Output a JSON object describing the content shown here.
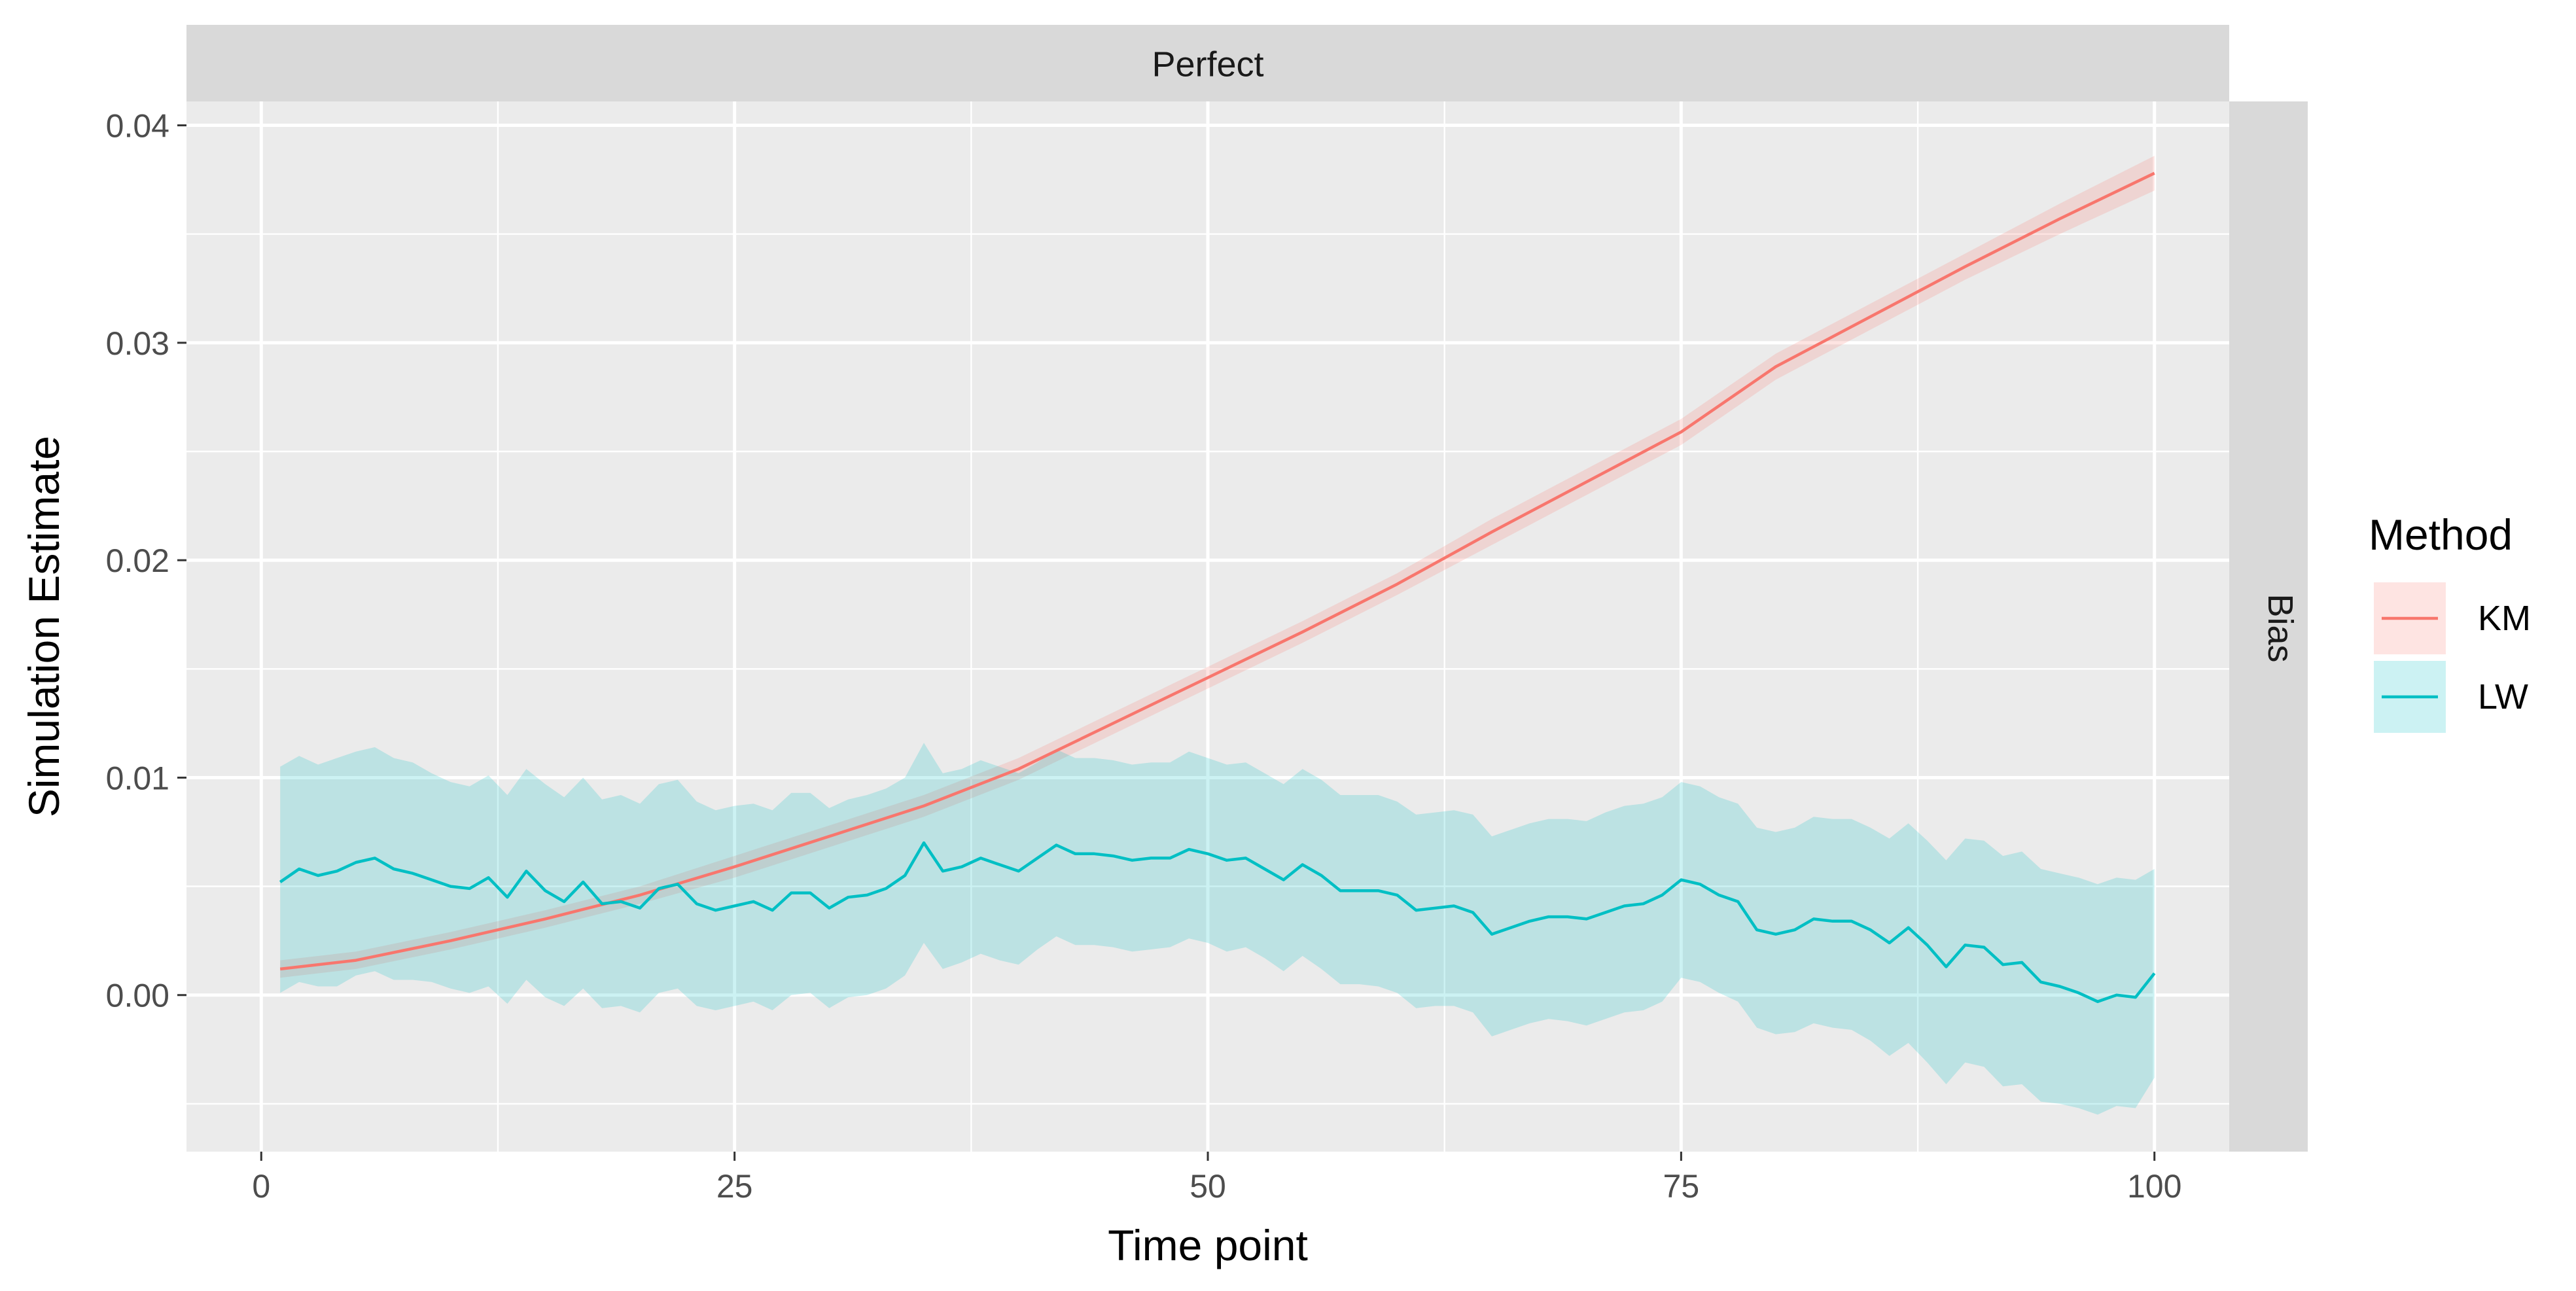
{
  "chart_data": {
    "type": "line",
    "title": "",
    "facet_top": "Perfect",
    "facet_right": "Bias",
    "xlabel": "Time point",
    "ylabel": "Simulation Estimate",
    "xlim": [
      -3.95,
      103.95
    ],
    "ylim": [
      -0.0072,
      0.0411
    ],
    "x_ticks": [
      0,
      25,
      50,
      75,
      100
    ],
    "x_tick_labels": [
      "0",
      "25",
      "50",
      "75",
      "100"
    ],
    "y_ticks": [
      0.0,
      0.01,
      0.02,
      0.03,
      0.04
    ],
    "y_tick_labels": [
      "0.00",
      "0.01",
      "0.02",
      "0.03",
      "0.04"
    ],
    "grid": true,
    "legend": {
      "title": "Method",
      "position": "right",
      "entries": [
        "KM",
        "LW"
      ]
    },
    "colors": {
      "KM": "#F8766D",
      "LW": "#00BFC4",
      "panel": "#EBEBEB",
      "strip": "#D9D9D9",
      "grid": "#FFFFFF"
    },
    "series": [
      {
        "name": "KM",
        "x": [
          1,
          5,
          10,
          15,
          20,
          25,
          30,
          35,
          40,
          45,
          50,
          55,
          60,
          65,
          70,
          75,
          80,
          85,
          90,
          95,
          100
        ],
        "y": [
          0.0012,
          0.0016,
          0.0025,
          0.0035,
          0.0046,
          0.0059,
          0.0073,
          0.0087,
          0.0104,
          0.0125,
          0.0146,
          0.0167,
          0.0189,
          0.0213,
          0.0236,
          0.0259,
          0.0289,
          0.0312,
          0.0335,
          0.0357,
          0.0378
        ],
        "lower": [
          0.0008,
          0.0012,
          0.0021,
          0.0031,
          0.0042,
          0.0054,
          0.0068,
          0.0082,
          0.0099,
          0.012,
          0.0141,
          0.0162,
          0.0184,
          0.0207,
          0.023,
          0.0253,
          0.0283,
          0.0306,
          0.0329,
          0.035,
          0.037
        ],
        "upper": [
          0.0016,
          0.002,
          0.0029,
          0.0039,
          0.005,
          0.0064,
          0.0078,
          0.0092,
          0.0109,
          0.013,
          0.0151,
          0.0172,
          0.0194,
          0.0219,
          0.0242,
          0.0265,
          0.0295,
          0.0318,
          0.0341,
          0.0364,
          0.0386
        ]
      },
      {
        "name": "LW",
        "x": [
          1,
          2,
          3,
          4,
          5,
          6,
          7,
          8,
          9,
          10,
          11,
          12,
          13,
          14,
          15,
          16,
          17,
          18,
          19,
          20,
          21,
          22,
          23,
          24,
          25,
          26,
          27,
          28,
          29,
          30,
          31,
          32,
          33,
          34,
          35,
          36,
          37,
          38,
          39,
          40,
          41,
          42,
          43,
          44,
          45,
          46,
          47,
          48,
          49,
          50,
          51,
          52,
          53,
          54,
          55,
          56,
          57,
          58,
          59,
          60,
          61,
          62,
          63,
          64,
          65,
          66,
          67,
          68,
          69,
          70,
          71,
          72,
          73,
          74,
          75,
          76,
          77,
          78,
          79,
          80,
          81,
          82,
          83,
          84,
          85,
          86,
          87,
          88,
          89,
          90,
          91,
          92,
          93,
          94,
          95,
          96,
          97,
          98,
          99,
          100
        ],
        "y": [
          0.0052,
          0.0058,
          0.0055,
          0.0057,
          0.0061,
          0.0063,
          0.0058,
          0.0056,
          0.0053,
          0.005,
          0.0049,
          0.0054,
          0.0045,
          0.0057,
          0.0048,
          0.0043,
          0.0052,
          0.0042,
          0.0043,
          0.004,
          0.0049,
          0.0051,
          0.0042,
          0.0039,
          0.0041,
          0.0043,
          0.0039,
          0.0047,
          0.0047,
          0.004,
          0.0045,
          0.0046,
          0.0049,
          0.0055,
          0.007,
          0.0057,
          0.0059,
          0.0063,
          0.006,
          0.0057,
          0.0063,
          0.0069,
          0.0065,
          0.0065,
          0.0064,
          0.0062,
          0.0063,
          0.0063,
          0.0067,
          0.0065,
          0.0062,
          0.0063,
          0.0058,
          0.0053,
          0.006,
          0.0055,
          0.0048,
          0.0048,
          0.0048,
          0.0046,
          0.0039,
          0.004,
          0.0041,
          0.0038,
          0.0028,
          0.0031,
          0.0034,
          0.0036,
          0.0036,
          0.0035,
          0.0038,
          0.0041,
          0.0042,
          0.0046,
          0.0053,
          0.0051,
          0.0046,
          0.0043,
          0.003,
          0.0028,
          0.003,
          0.0035,
          0.0034,
          0.0034,
          0.003,
          0.0024,
          0.0031,
          0.0023,
          0.0013,
          0.0023,
          0.0022,
          0.0014,
          0.0015,
          0.0006,
          0.0004,
          0.0001,
          -0.0003,
          0.0,
          -0.0001,
          0.001
        ],
        "lower": [
          0.0001,
          0.0006,
          0.0004,
          0.0004,
          0.0009,
          0.0011,
          0.0007,
          0.0007,
          0.0006,
          0.0003,
          0.0001,
          0.0004,
          -0.0004,
          0.0007,
          -0.0001,
          -0.0005,
          0.0003,
          -0.0006,
          -0.0005,
          -0.0008,
          0.0001,
          0.0003,
          -0.0005,
          -0.0007,
          -0.0005,
          -0.0003,
          -0.0007,
          0.0,
          0.0001,
          -0.0006,
          -0.0001,
          0.0,
          0.0003,
          0.0009,
          0.0024,
          0.0012,
          0.0015,
          0.0019,
          0.0016,
          0.0014,
          0.0021,
          0.0027,
          0.0023,
          0.0023,
          0.0022,
          0.002,
          0.0021,
          0.0022,
          0.0026,
          0.0024,
          0.002,
          0.0022,
          0.0017,
          0.0011,
          0.0018,
          0.0012,
          0.0005,
          0.0005,
          0.0004,
          0.0001,
          -0.0006,
          -0.0005,
          -0.0005,
          -0.0008,
          -0.0019,
          -0.0016,
          -0.0013,
          -0.0011,
          -0.0012,
          -0.0014,
          -0.0011,
          -0.0008,
          -0.0007,
          -0.0003,
          0.0008,
          0.0006,
          0.0001,
          -0.0003,
          -0.0015,
          -0.0018,
          -0.0017,
          -0.0013,
          -0.0015,
          -0.0016,
          -0.0021,
          -0.0028,
          -0.0022,
          -0.0031,
          -0.0041,
          -0.0031,
          -0.0033,
          -0.0042,
          -0.0041,
          -0.0049,
          -0.005,
          -0.0052,
          -0.0055,
          -0.0051,
          -0.0052,
          -0.0038
        ],
        "upper": [
          0.0105,
          0.011,
          0.0106,
          0.0109,
          0.0112,
          0.0114,
          0.0109,
          0.0107,
          0.0102,
          0.0098,
          0.0096,
          0.0101,
          0.0092,
          0.0104,
          0.0097,
          0.0091,
          0.01,
          0.009,
          0.0092,
          0.0088,
          0.0097,
          0.0099,
          0.0089,
          0.0085,
          0.0087,
          0.0088,
          0.0085,
          0.0093,
          0.0093,
          0.0086,
          0.009,
          0.0092,
          0.0095,
          0.01,
          0.0116,
          0.0102,
          0.0104,
          0.0108,
          0.0105,
          0.0102,
          0.0107,
          0.0113,
          0.0109,
          0.0109,
          0.0108,
          0.0106,
          0.0107,
          0.0107,
          0.0112,
          0.0109,
          0.0106,
          0.0107,
          0.0102,
          0.0097,
          0.0104,
          0.0099,
          0.0092,
          0.0092,
          0.0092,
          0.0089,
          0.0083,
          0.0084,
          0.0085,
          0.0083,
          0.0073,
          0.0076,
          0.0079,
          0.0081,
          0.0081,
          0.008,
          0.0084,
          0.0087,
          0.0088,
          0.0091,
          0.0098,
          0.0096,
          0.0091,
          0.0088,
          0.0077,
          0.0075,
          0.0077,
          0.0082,
          0.0081,
          0.0081,
          0.0077,
          0.0072,
          0.0079,
          0.0071,
          0.0062,
          0.0072,
          0.0071,
          0.0064,
          0.0066,
          0.0058,
          0.0056,
          0.0054,
          0.0051,
          0.0054,
          0.0053,
          0.0058
        ]
      }
    ]
  }
}
